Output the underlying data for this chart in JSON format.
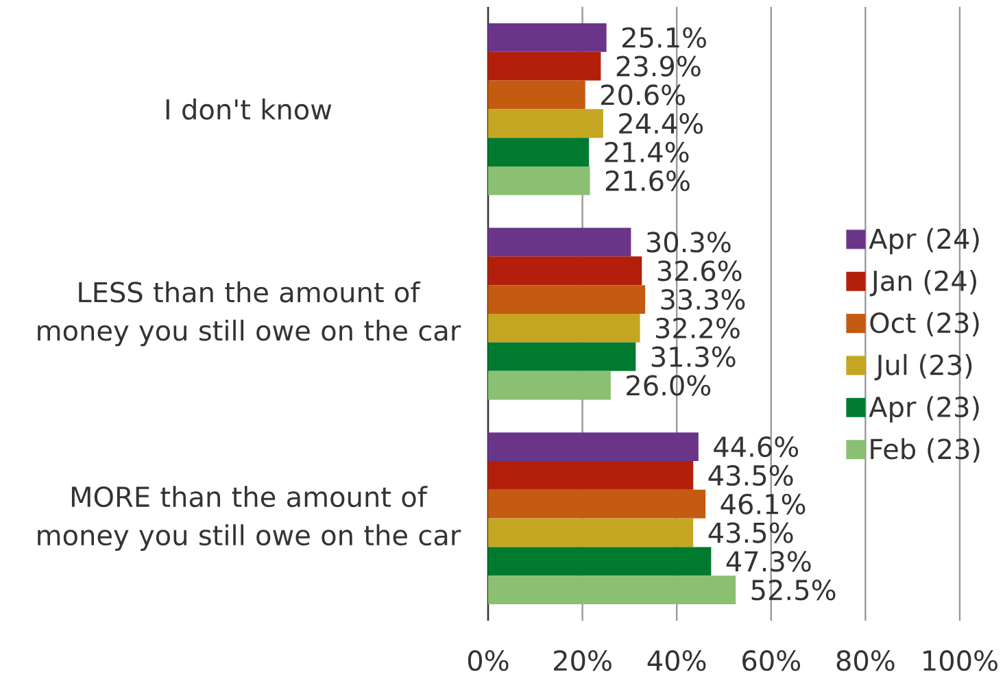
{
  "chart_data": {
    "type": "bar",
    "orientation": "horizontal",
    "categories": [
      "I don't know",
      "LESS than the amount of money you still owe on the car",
      "MORE than the amount of money you still owe on the car"
    ],
    "series": [
      {
        "name": "Apr (24)",
        "color": "#6a3589",
        "values": [
          25.1,
          30.3,
          44.6
        ],
        "value_labels": [
          "25.1%",
          "30.3%",
          "44.6%"
        ]
      },
      {
        "name": "Jan (24)",
        "color": "#b31f0b",
        "values": [
          23.9,
          32.6,
          43.5
        ],
        "value_labels": [
          "23.9%",
          "32.6%",
          "43.5%"
        ]
      },
      {
        "name": "Oct (23)",
        "color": "#c55a11",
        "values": [
          20.6,
          33.3,
          46.1
        ],
        "value_labels": [
          "20.6%",
          "33.3%",
          "46.1%"
        ]
      },
      {
        "name": "Jul (23)",
        "color": "#c4a622",
        "values": [
          24.4,
          32.2,
          43.5
        ],
        "value_labels": [
          "24.4%",
          "32.2%",
          "43.5%"
        ]
      },
      {
        "name": "Apr (23)",
        "color": "#007a2f",
        "values": [
          21.4,
          31.3,
          47.3
        ],
        "value_labels": [
          "21.4%",
          "31.3%",
          "47.3%"
        ]
      },
      {
        "name": "Feb (23)",
        "color": "#8bbf72",
        "values": [
          21.6,
          26.0,
          52.5
        ],
        "value_labels": [
          "21.6%",
          "26.0%",
          "52.5%"
        ]
      }
    ],
    "xlim": [
      0,
      100
    ],
    "xticks": [
      {
        "value": 0,
        "label": "0%"
      },
      {
        "value": 20,
        "label": "20%"
      },
      {
        "value": 40,
        "label": "40%"
      },
      {
        "value": 60,
        "label": "60%"
      },
      {
        "value": 80,
        "label": "80%"
      },
      {
        "value": 100,
        "label": "100%"
      }
    ],
    "grid": "x",
    "legend": "right"
  }
}
